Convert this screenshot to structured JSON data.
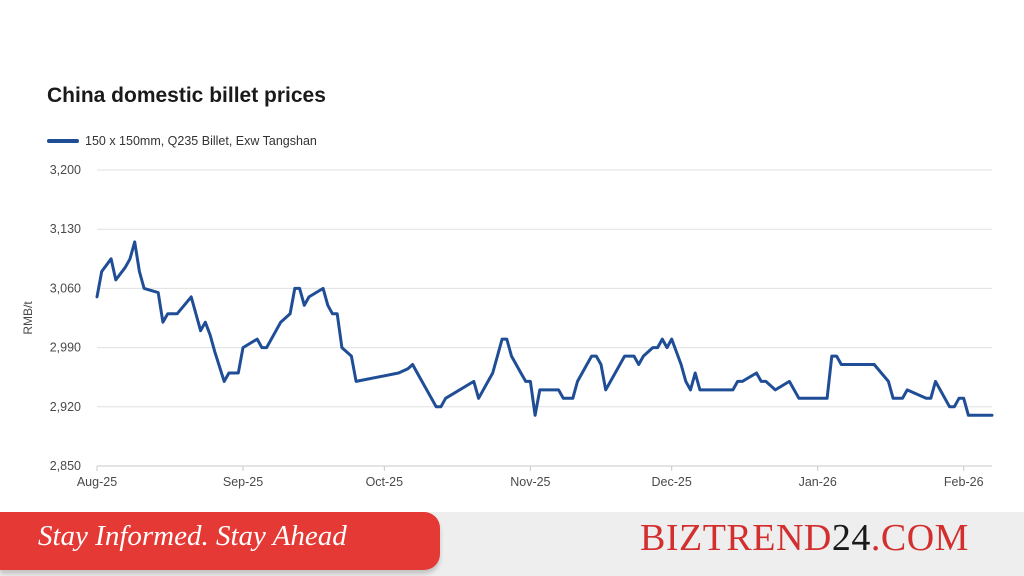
{
  "colors": {
    "series": "#1f4e96",
    "grid": "#e0e0e0",
    "axis": "#c8c8c8",
    "tagline_bg": "#e53935",
    "brand_red": "#d32f2f",
    "brand_black": "#1a1a1a"
  },
  "chart_data": {
    "type": "line",
    "title": "China domestic billet prices",
    "ylabel": "RMB/t",
    "xlabel": "",
    "ylim": [
      2850,
      3200
    ],
    "yticks": [
      "3,200",
      "3,130",
      "3,060",
      "2,990",
      "2,920",
      "2,850"
    ],
    "ytick_values": [
      3200,
      3130,
      3060,
      2990,
      2920,
      2850
    ],
    "xlim": [
      "2025-08-01",
      "2026-02-07"
    ],
    "xticks": [
      {
        "date": "2025-08-01",
        "label": "Aug-25"
      },
      {
        "date": "2025-09-01",
        "label": "Sep-25"
      },
      {
        "date": "2025-10-01",
        "label": "Oct-25"
      },
      {
        "date": "2025-11-01",
        "label": "Nov-25"
      },
      {
        "date": "2025-12-01",
        "label": "Dec-25"
      },
      {
        "date": "2026-01-01",
        "label": "Jan-26"
      },
      {
        "date": "2026-02-01",
        "label": "Feb-26"
      }
    ],
    "grid": true,
    "legend": "top-left",
    "series": [
      {
        "name": "150 x 150mm, Q235 Billet, Exw Tangshan",
        "points": [
          [
            "2025-08-01",
            3050
          ],
          [
            "2025-08-02",
            3080
          ],
          [
            "2025-08-04",
            3095
          ],
          [
            "2025-08-05",
            3070
          ],
          [
            "2025-08-07",
            3085
          ],
          [
            "2025-08-08",
            3095
          ],
          [
            "2025-08-09",
            3115
          ],
          [
            "2025-08-10",
            3080
          ],
          [
            "2025-08-11",
            3060
          ],
          [
            "2025-08-14",
            3055
          ],
          [
            "2025-08-15",
            3020
          ],
          [
            "2025-08-16",
            3030
          ],
          [
            "2025-08-18",
            3030
          ],
          [
            "2025-08-21",
            3050
          ],
          [
            "2025-08-23",
            3010
          ],
          [
            "2025-08-24",
            3020
          ],
          [
            "2025-08-25",
            3005
          ],
          [
            "2025-08-26",
            2985
          ],
          [
            "2025-08-28",
            2950
          ],
          [
            "2025-08-29",
            2960
          ],
          [
            "2025-08-31",
            2960
          ],
          [
            "2025-09-01",
            2990
          ],
          [
            "2025-09-04",
            3000
          ],
          [
            "2025-09-05",
            2990
          ],
          [
            "2025-09-06",
            2990
          ],
          [
            "2025-09-08",
            3010
          ],
          [
            "2025-09-09",
            3020
          ],
          [
            "2025-09-11",
            3030
          ],
          [
            "2025-09-12",
            3060
          ],
          [
            "2025-09-13",
            3060
          ],
          [
            "2025-09-14",
            3040
          ],
          [
            "2025-09-15",
            3050
          ],
          [
            "2025-09-18",
            3060
          ],
          [
            "2025-09-19",
            3040
          ],
          [
            "2025-09-20",
            3030
          ],
          [
            "2025-09-21",
            3030
          ],
          [
            "2025-09-22",
            2990
          ],
          [
            "2025-09-24",
            2980
          ],
          [
            "2025-09-25",
            2950
          ],
          [
            "2025-10-04",
            2960
          ],
          [
            "2025-10-06",
            2965
          ],
          [
            "2025-10-07",
            2970
          ],
          [
            "2025-10-08",
            2960
          ],
          [
            "2025-10-12",
            2920
          ],
          [
            "2025-10-13",
            2920
          ],
          [
            "2025-10-14",
            2930
          ],
          [
            "2025-10-20",
            2950
          ],
          [
            "2025-10-21",
            2930
          ],
          [
            "2025-10-23",
            2950
          ],
          [
            "2025-10-24",
            2960
          ],
          [
            "2025-10-25",
            2980
          ],
          [
            "2025-10-26",
            3000
          ],
          [
            "2025-10-27",
            3000
          ],
          [
            "2025-10-28",
            2980
          ],
          [
            "2025-10-30",
            2960
          ],
          [
            "2025-10-31",
            2950
          ],
          [
            "2025-11-01",
            2950
          ],
          [
            "2025-11-02",
            2910
          ],
          [
            "2025-11-03",
            2940
          ],
          [
            "2025-11-07",
            2940
          ],
          [
            "2025-11-08",
            2930
          ],
          [
            "2025-11-10",
            2930
          ],
          [
            "2025-11-11",
            2950
          ],
          [
            "2025-11-13",
            2970
          ],
          [
            "2025-11-14",
            2980
          ],
          [
            "2025-11-15",
            2980
          ],
          [
            "2025-11-16",
            2970
          ],
          [
            "2025-11-17",
            2940
          ],
          [
            "2025-11-19",
            2960
          ],
          [
            "2025-11-21",
            2980
          ],
          [
            "2025-11-23",
            2980
          ],
          [
            "2025-11-24",
            2970
          ],
          [
            "2025-11-25",
            2980
          ],
          [
            "2025-11-27",
            2990
          ],
          [
            "2025-11-28",
            2990
          ],
          [
            "2025-11-29",
            3000
          ],
          [
            "2025-11-30",
            2990
          ],
          [
            "2025-12-01",
            3000
          ],
          [
            "2025-12-03",
            2970
          ],
          [
            "2025-12-04",
            2950
          ],
          [
            "2025-12-05",
            2940
          ],
          [
            "2025-12-06",
            2960
          ],
          [
            "2025-12-07",
            2940
          ],
          [
            "2025-12-14",
            2940
          ],
          [
            "2025-12-15",
            2950
          ],
          [
            "2025-12-16",
            2950
          ],
          [
            "2025-12-19",
            2960
          ],
          [
            "2025-12-20",
            2950
          ],
          [
            "2025-12-21",
            2950
          ],
          [
            "2025-12-23",
            2940
          ],
          [
            "2025-12-26",
            2950
          ],
          [
            "2025-12-28",
            2930
          ],
          [
            "2026-01-03",
            2930
          ],
          [
            "2026-01-04",
            2980
          ],
          [
            "2026-01-05",
            2980
          ],
          [
            "2026-01-06",
            2970
          ],
          [
            "2026-01-13",
            2970
          ],
          [
            "2026-01-16",
            2950
          ],
          [
            "2026-01-17",
            2930
          ],
          [
            "2026-01-19",
            2930
          ],
          [
            "2026-01-20",
            2940
          ],
          [
            "2026-01-24",
            2930
          ],
          [
            "2026-01-25",
            2930
          ],
          [
            "2026-01-26",
            2950
          ],
          [
            "2026-01-29",
            2920
          ],
          [
            "2026-01-30",
            2920
          ],
          [
            "2026-01-31",
            2930
          ],
          [
            "2026-02-01",
            2930
          ],
          [
            "2026-02-02",
            2910
          ],
          [
            "2026-02-07",
            2910
          ]
        ]
      }
    ]
  },
  "footer": {
    "tagline": "Stay Informed. Stay Ahead",
    "brand_part1": "BIZTREND",
    "brand_part2": "24",
    "brand_part3": ".COM"
  }
}
